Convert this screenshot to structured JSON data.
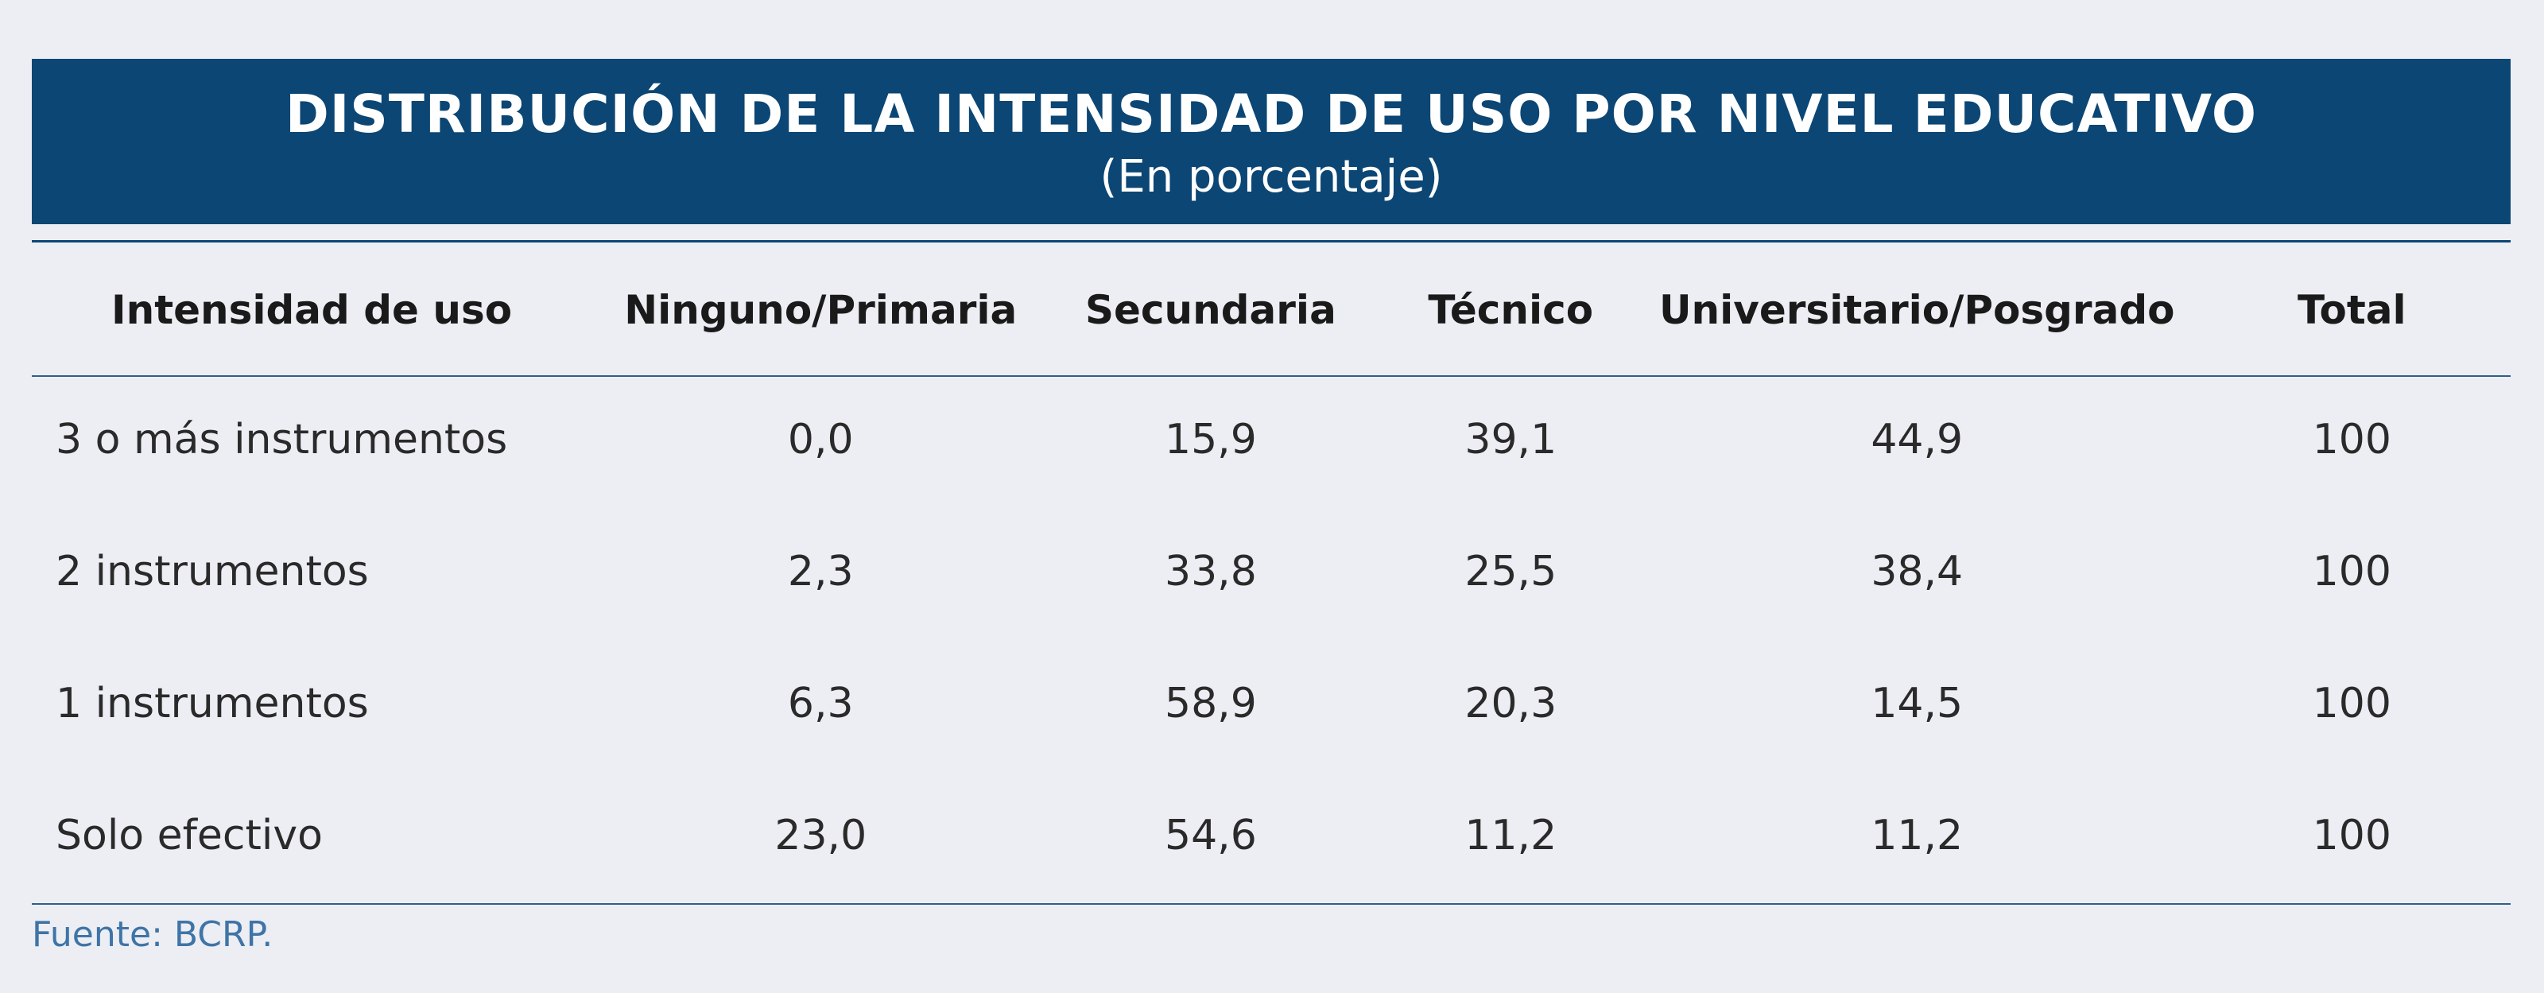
{
  "header": {
    "title": "DISTRIBUCIÓN DE LA INTENSIDAD DE USO POR NIVEL EDUCATIVO",
    "subtitle": "(En porcentaje)"
  },
  "table": {
    "columns": [
      "Intensidad de uso",
      "Ninguno/Primaria",
      "Secundaria",
      "Técnico",
      "Universitario/Posgrado",
      "Total"
    ],
    "rows": [
      [
        "3 o más instrumentos",
        "0,0",
        "15,9",
        "39,1",
        "44,9",
        "100"
      ],
      [
        "2 instrumentos",
        "2,3",
        "33,8",
        "25,5",
        "38,4",
        "100"
      ],
      [
        "1 instrumentos",
        "6,3",
        "58,9",
        "20,3",
        "14,5",
        "100"
      ],
      [
        "Solo efectivo",
        "23,0",
        "54,6",
        "11,2",
        "11,2",
        "100"
      ]
    ]
  },
  "footer": {
    "source": "Fuente: BCRP."
  },
  "colors": {
    "banner": "#0b4674",
    "background": "#eceef4",
    "source_text": "#3f74a6"
  }
}
